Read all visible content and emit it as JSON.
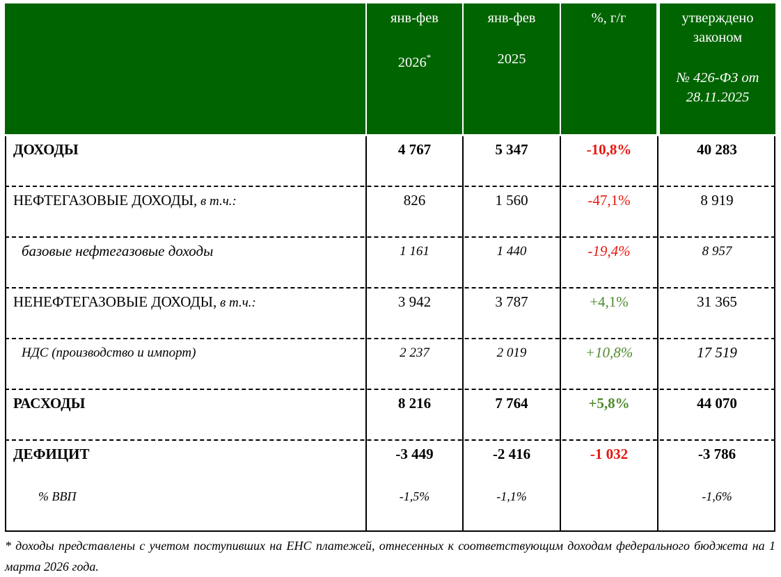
{
  "header": {
    "col1": {
      "line1": "янв-фев",
      "line2": "2026",
      "sup": "*"
    },
    "col2": {
      "line1": "янв-фев",
      "line2": "2025"
    },
    "col3": {
      "line1": "%, г/г"
    },
    "col4": {
      "line1": "утверждено",
      "line2": "законом",
      "line3": "№ 426-ФЗ от",
      "line4": "28.11.2025"
    }
  },
  "rows": [
    {
      "label": "ДОХОДЫ",
      "suffix": "",
      "v2026": "4 767",
      "v2025": "5 347",
      "pct": "-10,8%",
      "law": "40 283"
    },
    {
      "label": "НЕФТЕГАЗОВЫЕ ДОХОДЫ,",
      "suffix": " в т.ч.:",
      "v2026": "826",
      "v2025": "1 560",
      "pct": "-47,1%",
      "law": "8 919"
    },
    {
      "label": "базовые нефтегазовые доходы",
      "suffix": "",
      "v2026": "1 161",
      "v2025": "1 440",
      "pct": "-19,4%",
      "law": "8 957"
    },
    {
      "label": "НЕНЕФТЕГАЗОВЫЕ ДОХОДЫ,",
      "suffix": " в т.ч.:",
      "v2026": "3 942",
      "v2025": "3 787",
      "pct": "+4,1%",
      "law": "31 365"
    },
    {
      "label": "НДС (производство и импорт)",
      "suffix": "",
      "v2026": "2 237",
      "v2025": "2 019",
      "pct": "+10,8%",
      "law": "17 519"
    },
    {
      "label": "РАСХОДЫ",
      "suffix": "",
      "v2026": "8 216",
      "v2025": "7 764",
      "pct": "+5,8%",
      "law": "44 070"
    },
    {
      "label": "ДЕФИЦИТ",
      "suffix": "",
      "v2026": "-3 449",
      "v2025": "-2 416",
      "pct": "-1 032",
      "law": "-3 786"
    },
    {
      "label": "% ВВП",
      "suffix": "",
      "v2026": "-1,5%",
      "v2025": "-1,1%",
      "pct": "",
      "law": "-1,6%"
    }
  ],
  "colors": {
    "header_bg": "#006400",
    "negative": "#e8170f",
    "positive": "#4f8a2f"
  },
  "footnote": "* доходы представлены с учетом поступивших на ЕНС платежей, отнесенных к соответствующим доходам федерального бюджета на 1 марта 2026 года."
}
